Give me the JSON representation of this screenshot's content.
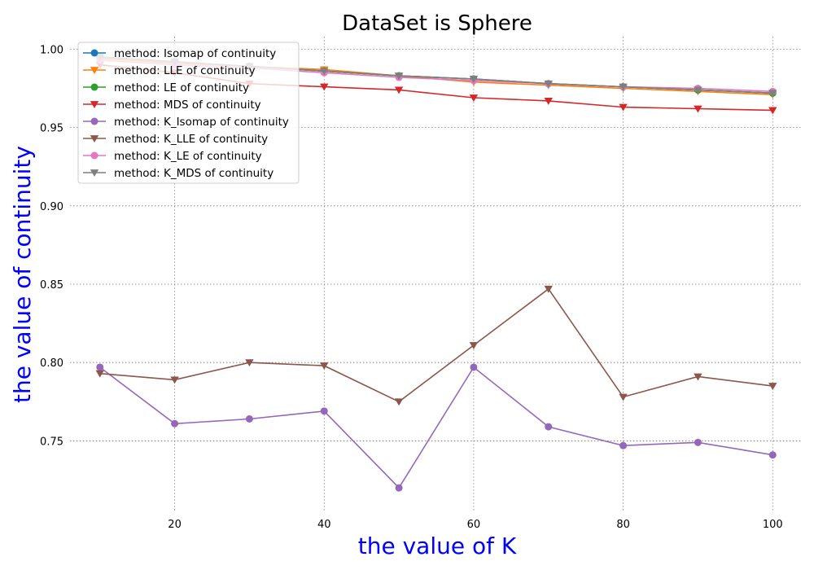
{
  "chart_data": {
    "type": "line",
    "title": "DataSet is Sphere",
    "xlabel": "the value of K",
    "ylabel": "the value of continuity",
    "x": [
      10,
      20,
      30,
      40,
      50,
      60,
      70,
      80,
      90,
      100
    ],
    "xlim": [
      6,
      104
    ],
    "ylim": [
      0.705,
      1.008
    ],
    "xticks": [
      20,
      40,
      60,
      80,
      100
    ],
    "yticks": [
      0.75,
      0.8,
      0.85,
      0.9,
      0.95,
      1.0
    ],
    "ytick_labels": [
      "0.75",
      "0.80",
      "0.85",
      "0.90",
      "0.95",
      "1.00"
    ],
    "grid": true,
    "legend_position": "top-left",
    "series": [
      {
        "name": "method: Isomap of continuity",
        "color": "#1f77b4",
        "marker": "circle",
        "values": [
          0.995,
          0.992,
          0.989,
          0.986,
          0.983,
          0.981,
          0.978,
          0.976,
          0.974,
          0.972
        ]
      },
      {
        "name": "method: LLE of continuity",
        "color": "#ff7f0e",
        "marker": "triangle-down",
        "values": [
          0.994,
          0.991,
          0.989,
          0.987,
          0.983,
          0.979,
          0.977,
          0.975,
          0.973,
          0.971
        ]
      },
      {
        "name": "method: LE of continuity",
        "color": "#2ca02c",
        "marker": "circle",
        "values": [
          0.995,
          0.992,
          0.989,
          0.986,
          0.983,
          0.981,
          0.978,
          0.976,
          0.974,
          0.972
        ]
      },
      {
        "name": "method: MDS of continuity",
        "color": "#d62728",
        "marker": "triangle-down",
        "values": [
          0.99,
          0.985,
          0.978,
          0.976,
          0.974,
          0.969,
          0.967,
          0.963,
          0.962,
          0.961
        ]
      },
      {
        "name": "method: K_Isomap of continuity",
        "color": "#9467bd",
        "marker": "circle",
        "values": [
          0.797,
          0.761,
          0.764,
          0.769,
          0.72,
          0.797,
          0.759,
          0.747,
          0.749,
          0.741
        ]
      },
      {
        "name": "method: K_LLE of continuity",
        "color": "#8c564b",
        "marker": "triangle-down",
        "values": [
          0.793,
          0.789,
          0.8,
          0.798,
          0.775,
          0.811,
          0.847,
          0.778,
          0.791,
          0.785
        ]
      },
      {
        "name": "method: K_LE of continuity",
        "color": "#e377c2",
        "marker": "circle",
        "values": [
          0.993,
          0.99,
          0.988,
          0.985,
          0.982,
          0.98,
          0.978,
          0.976,
          0.975,
          0.973
        ]
      },
      {
        "name": "method: K_MDS of continuity",
        "color": "#7f7f7f",
        "marker": "triangle-down",
        "values": [
          0.995,
          0.992,
          0.989,
          0.986,
          0.983,
          0.981,
          0.978,
          0.976,
          0.974,
          0.972
        ]
      }
    ]
  }
}
